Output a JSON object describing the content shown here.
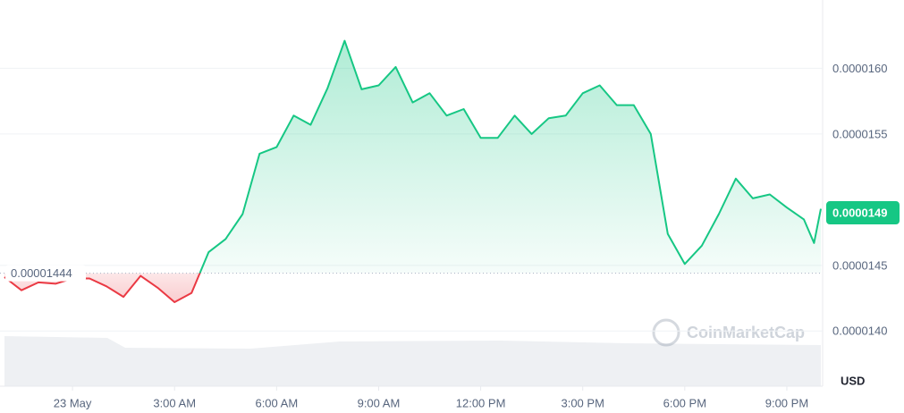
{
  "chart_data": {
    "type": "line",
    "x": [
      -2,
      -1.5,
      -1,
      -0.5,
      0,
      0.5,
      1,
      1.5,
      2,
      2.5,
      3,
      3.5,
      4,
      4.5,
      5,
      5.5,
      6,
      6.5,
      7,
      7.5,
      8,
      8.5,
      9,
      9.5,
      10,
      10.5,
      11,
      11.5,
      12,
      12.5,
      13,
      13.5,
      14,
      14.5,
      15,
      15.5,
      16,
      16.5,
      17,
      17.5,
      18,
      18.5,
      19,
      19.5,
      20,
      20.5,
      21,
      21.5,
      21.8,
      22
    ],
    "series": [
      {
        "values": [
          1.441e-05,
          1.431e-05,
          1.437e-05,
          1.436e-05,
          1.44e-05,
          1.44e-05,
          1.434e-05,
          1.426e-05,
          1.442e-05,
          1.433e-05,
          1.422e-05,
          1.429e-05,
          1.46e-05,
          1.47e-05,
          1.489e-05,
          1.535e-05,
          1.54e-05,
          1.564e-05,
          1.557e-05,
          1.585e-05,
          1.621e-05,
          1.584e-05,
          1.587e-05,
          1.601e-05,
          1.574e-05,
          1.581e-05,
          1.564e-05,
          1.569e-05,
          1.547e-05,
          1.547e-05,
          1.564e-05,
          1.55e-05,
          1.562e-05,
          1.564e-05,
          1.581e-05,
          1.587e-05,
          1.572e-05,
          1.572e-05,
          1.55e-05,
          1.474e-05,
          1.451e-05,
          1.465e-05,
          1.489e-05,
          1.516e-05,
          1.501e-05,
          1.504e-05,
          1.494e-05,
          1.485e-05,
          1.467e-05,
          1.493e-05
        ],
        "color_up": "#16c784",
        "color_down": "#ea3943"
      }
    ],
    "baseline": 1.444e-05,
    "current_price": 1.49e-05,
    "xlim": [
      -2,
      22
    ],
    "xticks": [
      {
        "value": 0,
        "label": "23 May"
      },
      {
        "value": 3,
        "label": "3:00 AM"
      },
      {
        "value": 6,
        "label": "6:00 AM"
      },
      {
        "value": 9,
        "label": "9:00 AM"
      },
      {
        "value": 12,
        "label": "12:00 PM"
      },
      {
        "value": 15,
        "label": "3:00 PM"
      },
      {
        "value": 18,
        "label": "6:00 PM"
      },
      {
        "value": 21,
        "label": "9:00 PM"
      }
    ],
    "ylim": [
      1.358e-05,
      1.652e-05
    ],
    "yticks": [
      {
        "value": 1.4e-05,
        "label": "0.0000140"
      },
      1.45e-05,
      1.55e-05,
      {
        "value": 1.6e-05,
        "label": "0.0000160"
      }
    ],
    "ylabel": "USD",
    "watermark": "CoinMarketCap",
    "grid": true
  }
}
